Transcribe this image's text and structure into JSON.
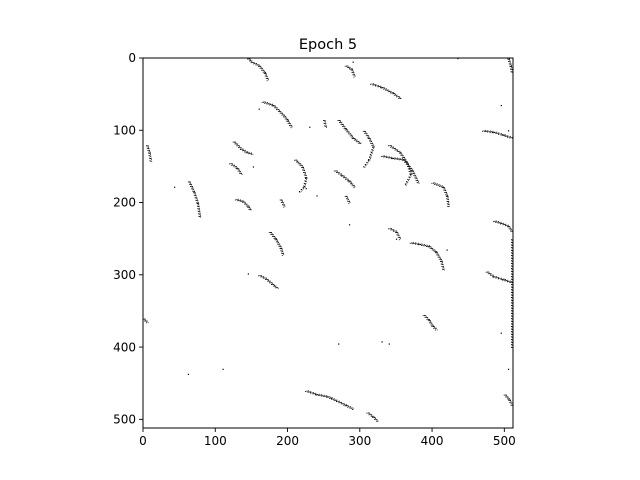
{
  "chart_data": {
    "type": "image",
    "title": "Epoch 5",
    "xlabel": "",
    "ylabel": "",
    "image_size": [
      512,
      512
    ],
    "xlim": [
      0,
      512
    ],
    "ylim": [
      512,
      0
    ],
    "x_ticks": [
      0,
      100,
      200,
      300,
      400,
      500
    ],
    "x_tick_labels": [
      "0",
      "100",
      "200",
      "300",
      "400",
      "500"
    ],
    "y_ticks": [
      0,
      100,
      200,
      300,
      400,
      500
    ],
    "y_tick_labels": [
      "0",
      "100",
      "200",
      "300",
      "400",
      "500"
    ],
    "cmap": "binary",
    "foreground_color": "#000000",
    "background_color": "#ffffff",
    "strokes": [
      [
        [
          145,
          0
        ],
        [
          150,
          5
        ],
        [
          160,
          10
        ],
        [
          168,
          20
        ],
        [
          172,
          30
        ]
      ],
      [
        [
          280,
          10
        ],
        [
          288,
          15
        ],
        [
          292,
          25
        ]
      ],
      [
        [
          315,
          35
        ],
        [
          330,
          40
        ],
        [
          345,
          48
        ],
        [
          355,
          55
        ]
      ],
      [
        [
          165,
          60
        ],
        [
          180,
          65
        ],
        [
          195,
          80
        ],
        [
          205,
          95
        ]
      ],
      [
        [
          250,
          85
        ],
        [
          252,
          95
        ]
      ],
      [
        [
          270,
          85
        ],
        [
          280,
          98
        ],
        [
          290,
          110
        ],
        [
          300,
          118
        ]
      ],
      [
        [
          305,
          100
        ],
        [
          312,
          110
        ],
        [
          318,
          122
        ],
        [
          312,
          140
        ],
        [
          305,
          150
        ]
      ],
      [
        [
          340,
          120
        ],
        [
          355,
          130
        ],
        [
          365,
          145
        ],
        [
          370,
          160
        ],
        [
          362,
          175
        ]
      ],
      [
        [
          330,
          135
        ],
        [
          345,
          138
        ],
        [
          360,
          140
        ],
        [
          372,
          155
        ],
        [
          380,
          172
        ]
      ],
      [
        [
          400,
          172
        ],
        [
          415,
          178
        ],
        [
          420,
          190
        ],
        [
          422,
          205
        ]
      ],
      [
        [
          470,
          100
        ],
        [
          485,
          102
        ],
        [
          498,
          106
        ],
        [
          510,
          110
        ]
      ],
      [
        [
          125,
          115
        ],
        [
          135,
          125
        ],
        [
          143,
          130
        ],
        [
          150,
          132
        ]
      ],
      [
        [
          120,
          145
        ],
        [
          130,
          152
        ],
        [
          135,
          160
        ]
      ],
      [
        [
          210,
          140
        ],
        [
          220,
          150
        ],
        [
          225,
          165
        ],
        [
          222,
          178
        ],
        [
          215,
          185
        ]
      ],
      [
        [
          265,
          155
        ],
        [
          275,
          162
        ],
        [
          285,
          170
        ],
        [
          292,
          178
        ]
      ],
      [
        [
          280,
          190
        ],
        [
          285,
          200
        ]
      ],
      [
        [
          63,
          170
        ],
        [
          70,
          185
        ],
        [
          75,
          200
        ],
        [
          78,
          220
        ]
      ],
      [
        [
          128,
          195
        ],
        [
          138,
          198
        ],
        [
          145,
          205
        ],
        [
          148,
          210
        ]
      ],
      [
        [
          190,
          195
        ],
        [
          195,
          205
        ]
      ],
      [
        [
          175,
          240
        ],
        [
          183,
          250
        ],
        [
          190,
          262
        ],
        [
          193,
          272
        ]
      ],
      [
        [
          340,
          235
        ],
        [
          350,
          240
        ],
        [
          355,
          250
        ]
      ],
      [
        [
          370,
          255
        ],
        [
          382,
          257
        ],
        [
          395,
          260
        ],
        [
          405,
          268
        ],
        [
          412,
          280
        ],
        [
          415,
          292
        ]
      ],
      [
        [
          485,
          225
        ],
        [
          495,
          228
        ],
        [
          505,
          232
        ],
        [
          510,
          240
        ]
      ],
      [
        [
          475,
          295
        ],
        [
          485,
          302
        ],
        [
          498,
          306
        ],
        [
          510,
          310
        ]
      ],
      [
        [
          160,
          300
        ],
        [
          170,
          305
        ],
        [
          178,
          312
        ],
        [
          185,
          318
        ]
      ],
      [
        [
          388,
          355
        ],
        [
          395,
          362
        ],
        [
          400,
          370
        ],
        [
          405,
          375
        ]
      ],
      [
        [
          510,
          250
        ],
        [
          510,
          290
        ],
        [
          510,
          330
        ],
        [
          510,
          370
        ],
        [
          510,
          400
        ]
      ],
      [
        [
          225,
          460
        ],
        [
          240,
          465
        ],
        [
          255,
          468
        ],
        [
          268,
          474
        ],
        [
          280,
          480
        ],
        [
          290,
          485
        ]
      ],
      [
        [
          310,
          490
        ],
        [
          318,
          496
        ],
        [
          324,
          502
        ]
      ],
      [
        [
          505,
          0
        ],
        [
          508,
          10
        ],
        [
          510,
          20
        ]
      ],
      [
        [
          500,
          465
        ],
        [
          506,
          472
        ],
        [
          510,
          480
        ]
      ],
      [
        [
          5,
          120
        ],
        [
          8,
          130
        ],
        [
          10,
          142
        ]
      ],
      [
        [
          0,
          360
        ],
        [
          5,
          365
        ]
      ]
    ],
    "specks": [
      [
        43,
        178
      ],
      [
        62,
        437
      ],
      [
        110,
        430
      ],
      [
        145,
        298
      ],
      [
        152,
        150
      ],
      [
        225,
        180
      ],
      [
        240,
        190
      ],
      [
        270,
        395
      ],
      [
        285,
        230
      ],
      [
        330,
        392
      ],
      [
        340,
        395
      ],
      [
        435,
        0
      ],
      [
        495,
        65
      ],
      [
        505,
        100
      ],
      [
        495,
        380
      ],
      [
        505,
        430
      ],
      [
        420,
        265
      ],
      [
        260,
        470
      ],
      [
        350,
        250
      ],
      [
        200,
        85
      ],
      [
        230,
        95
      ],
      [
        160,
        70
      ],
      [
        290,
        5
      ],
      [
        355,
        55
      ]
    ]
  }
}
